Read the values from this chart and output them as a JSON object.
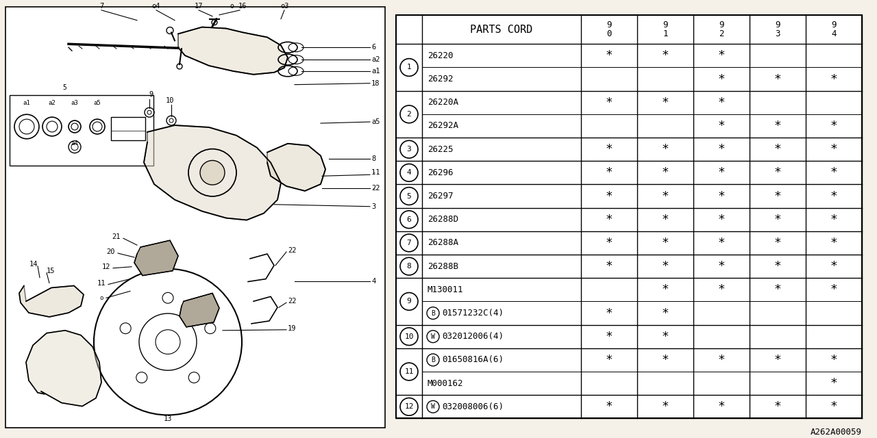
{
  "bg_color": "#f5f0e8",
  "rows": [
    {
      "ref": "1",
      "codes": [
        "26220",
        "26292"
      ],
      "stars": [
        [
          "*",
          "*",
          "*",
          "",
          ""
        ],
        [
          "",
          "",
          "*",
          "*",
          "*"
        ]
      ]
    },
    {
      "ref": "2",
      "codes": [
        "26220A",
        "26292A"
      ],
      "stars": [
        [
          "*",
          "*",
          "*",
          "",
          ""
        ],
        [
          "",
          "",
          "*",
          "*",
          "*"
        ]
      ]
    },
    {
      "ref": "3",
      "codes": [
        "26225"
      ],
      "stars": [
        [
          "*",
          "*",
          "*",
          "*",
          "*"
        ]
      ]
    },
    {
      "ref": "4",
      "codes": [
        "26296"
      ],
      "stars": [
        [
          "*",
          "*",
          "*",
          "*",
          "*"
        ]
      ]
    },
    {
      "ref": "5",
      "codes": [
        "26297"
      ],
      "stars": [
        [
          "*",
          "*",
          "*",
          "*",
          "*"
        ]
      ]
    },
    {
      "ref": "6",
      "codes": [
        "26288D"
      ],
      "stars": [
        [
          "*",
          "*",
          "*",
          "*",
          "*"
        ]
      ]
    },
    {
      "ref": "7",
      "codes": [
        "26288A"
      ],
      "stars": [
        [
          "*",
          "*",
          "*",
          "*",
          "*"
        ]
      ]
    },
    {
      "ref": "8",
      "codes": [
        "26288B"
      ],
      "stars": [
        [
          "*",
          "*",
          "*",
          "*",
          "*"
        ]
      ]
    },
    {
      "ref": "9",
      "codes": [
        "M130011",
        "B01571232C(4)"
      ],
      "stars": [
        [
          "",
          "*",
          "*",
          "*",
          "*"
        ],
        [
          "*",
          "*",
          "",
          "",
          ""
        ]
      ]
    },
    {
      "ref": "10",
      "codes": [
        "W032012006(4)"
      ],
      "stars": [
        [
          "*",
          "*",
          "",
          "",
          ""
        ]
      ]
    },
    {
      "ref": "11",
      "codes": [
        "B01650816A(6)",
        "M000162"
      ],
      "stars": [
        [
          "*",
          "*",
          "*",
          "*",
          "*"
        ],
        [
          "",
          "",
          "",
          "",
          "*"
        ]
      ]
    },
    {
      "ref": "12",
      "codes": [
        "W032008006(6)"
      ],
      "stars": [
        [
          "*",
          "*",
          "*",
          "*",
          "*"
        ]
      ]
    }
  ],
  "ref_special": {
    "9": {
      "B01571232C(4)": "B"
    },
    "10": {
      "W032012006(4)": "W"
    },
    "11": {
      "B01650816A(6)": "B"
    },
    "12": {
      "W032008006(6)": "W"
    }
  },
  "watermark": "A262A00059",
  "line_color": "#000000",
  "text_color": "#000000"
}
